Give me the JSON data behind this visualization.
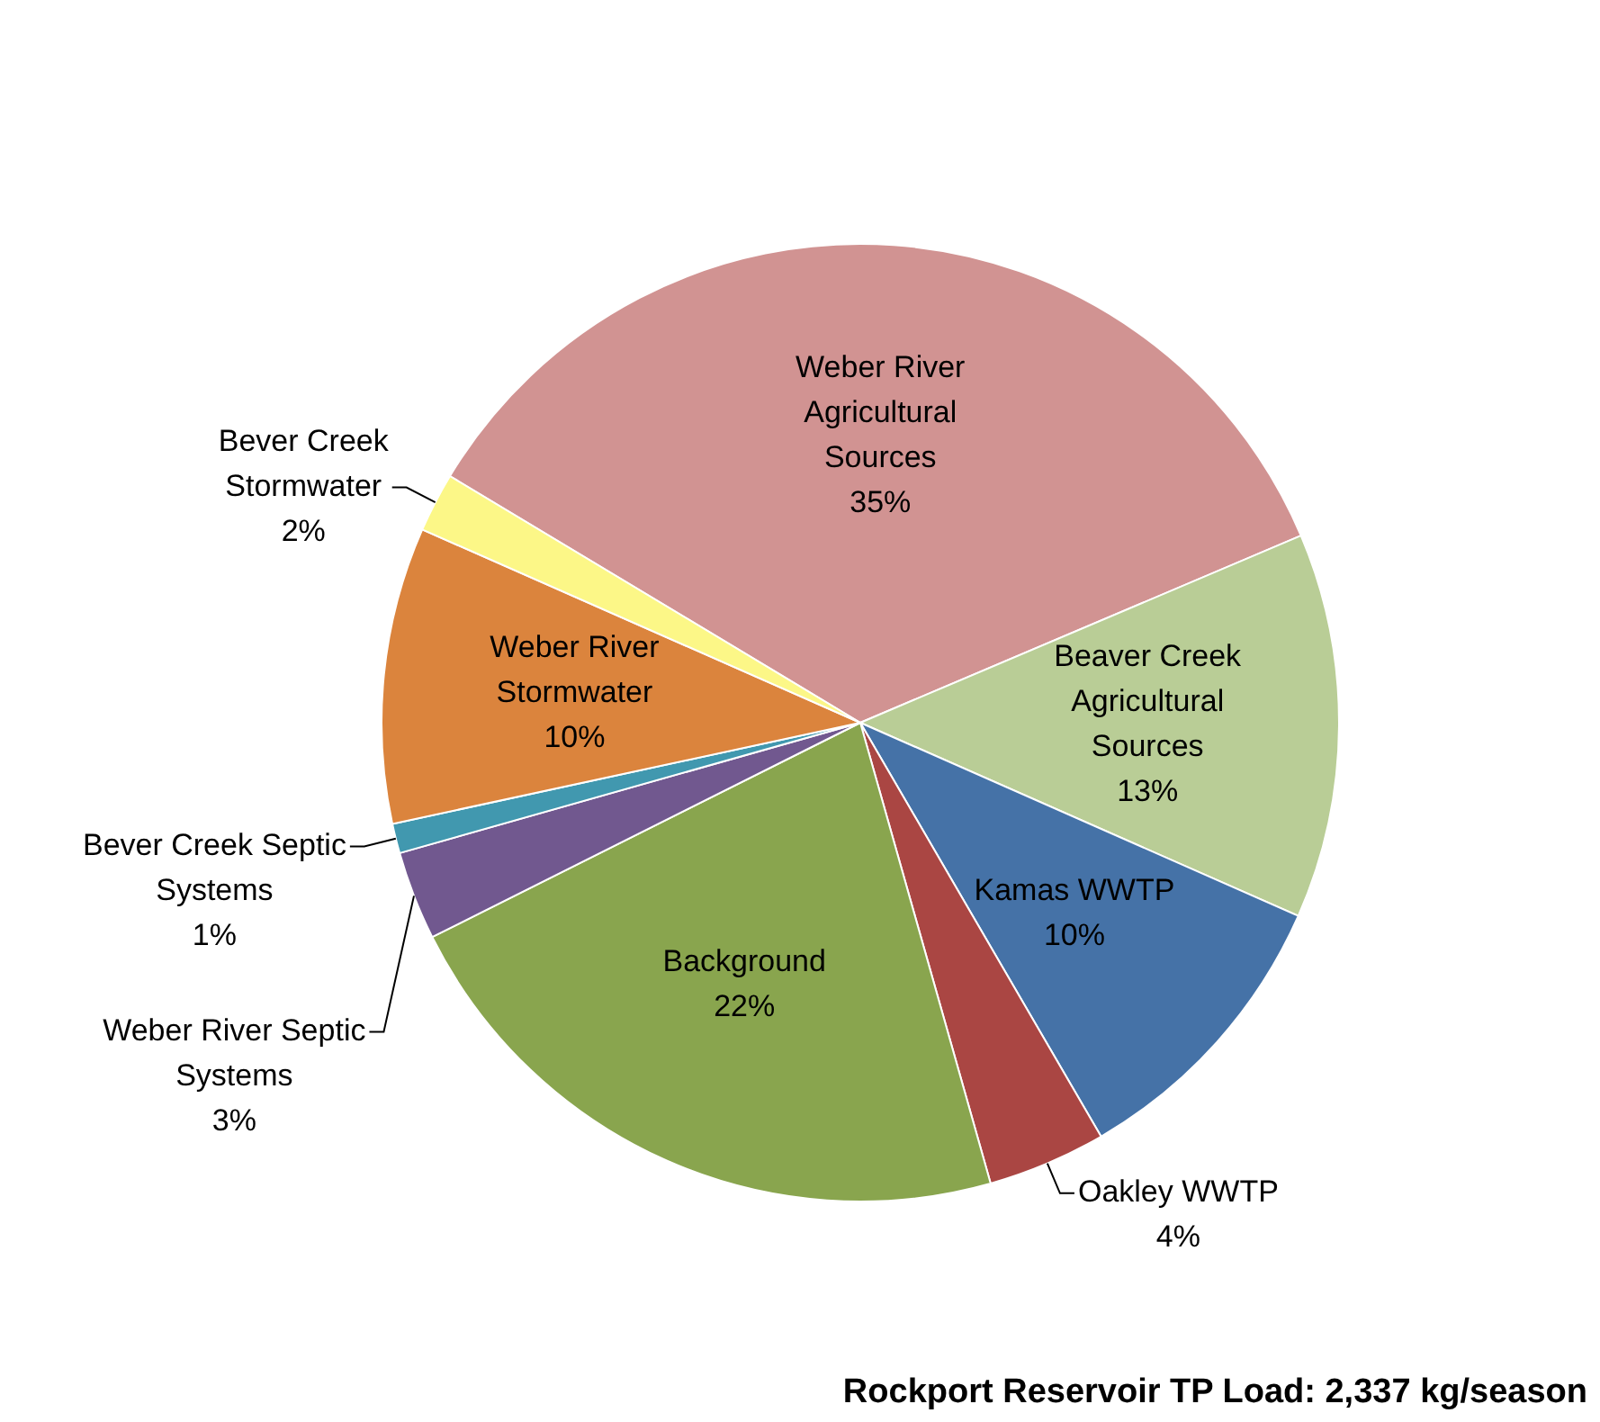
{
  "chart_data": {
    "type": "pie",
    "categories": [
      "Weber River Agricultural Sources",
      "Beaver Creek Agricultural Sources",
      "Kamas WWTP",
      "Oakley WWTP",
      "Background",
      "Weber River Septic Systems",
      "Bever Creek Septic Systems",
      "Weber River Stormwater",
      "Bever Creek Stormwater"
    ],
    "values": [
      35,
      13,
      10,
      4,
      22,
      3,
      1,
      10,
      2
    ],
    "colors": [
      "#d19392",
      "#b9cd96",
      "#4572a7",
      "#aa4643",
      "#89a54e",
      "#71588f",
      "#4198af",
      "#db843d",
      "#fcf787"
    ],
    "value_labels": [
      "35%",
      "13%",
      "10%",
      "4%",
      "22%",
      "3%",
      "1%",
      "10%",
      "2%"
    ],
    "legend": false,
    "annotations": [
      "Rockport Reservoir TP Load: 2,337 kg/season"
    ]
  }
}
